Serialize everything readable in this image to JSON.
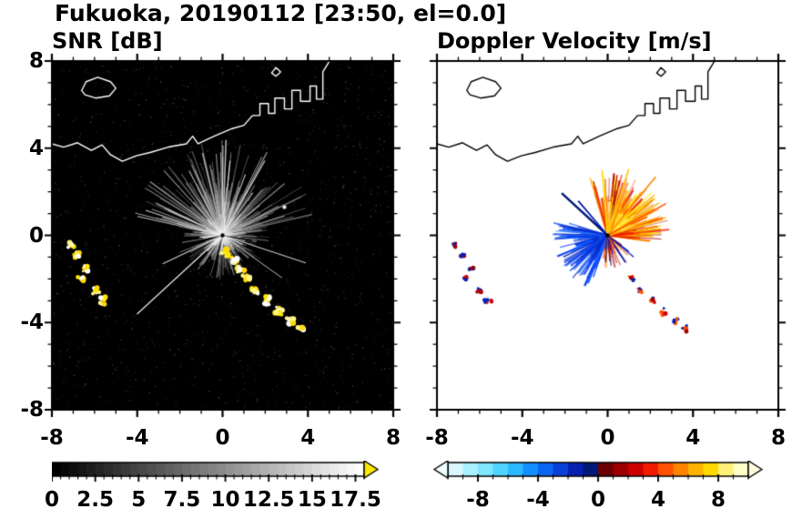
{
  "title": "Fukuoka, 20190112 [23:50, el=0.0]",
  "chart_data": {
    "type": "radar_ppi_pair",
    "suptitle": "Fukuoka, 20190112 [23:50, el=0.0]",
    "xlim": [
      -8,
      8
    ],
    "ylim": [
      -8,
      8
    ],
    "xticks": [
      -8,
      -4,
      0,
      4,
      8
    ],
    "yticks": [
      -8,
      -4,
      0,
      4,
      8
    ],
    "minor_tick_step": 1,
    "axis": {
      "xtick_labels": [
        "-8",
        "-4",
        "0",
        "4",
        "8"
      ],
      "ytick_labels": [
        "-8",
        "-4",
        "0",
        "4",
        "8"
      ]
    },
    "coastline": {
      "lines": [
        {
          "closed": false,
          "pts": [
            [
              -8.0,
              4.2
            ],
            [
              -7.45,
              4.05
            ],
            [
              -6.8,
              4.25
            ],
            [
              -6.15,
              3.9
            ],
            [
              -5.65,
              4.15
            ],
            [
              -5.25,
              3.7
            ],
            [
              -4.7,
              3.4
            ],
            [
              -4.05,
              3.65
            ],
            [
              -3.4,
              3.8
            ],
            [
              -2.55,
              4.05
            ],
            [
              -1.7,
              4.2
            ],
            [
              -1.4,
              4.55
            ],
            [
              -1.15,
              4.2
            ],
            [
              -0.4,
              4.55
            ],
            [
              0.45,
              4.9
            ],
            [
              1.0,
              5.05
            ],
            [
              1.4,
              5.5
            ],
            [
              1.75,
              5.5
            ],
            [
              1.75,
              6.05
            ],
            [
              2.15,
              6.05
            ],
            [
              2.15,
              5.6
            ],
            [
              2.45,
              5.6
            ],
            [
              2.45,
              6.3
            ],
            [
              2.9,
              6.3
            ],
            [
              2.9,
              5.8
            ],
            [
              3.25,
              5.8
            ],
            [
              3.25,
              6.65
            ],
            [
              3.65,
              6.65
            ],
            [
              3.65,
              6.15
            ],
            [
              4.1,
              6.15
            ],
            [
              4.1,
              6.85
            ],
            [
              4.4,
              6.85
            ],
            [
              4.4,
              6.25
            ],
            [
              4.7,
              6.25
            ],
            [
              4.7,
              7.5
            ],
            [
              4.95,
              7.9
            ],
            [
              5.0,
              8.0
            ]
          ]
        },
        {
          "closed": true,
          "pts": [
            [
              -6.6,
              6.65
            ],
            [
              -6.4,
              7.05
            ],
            [
              -5.85,
              7.25
            ],
            [
              -5.25,
              7.05
            ],
            [
              -5.0,
              6.75
            ],
            [
              -5.3,
              6.4
            ],
            [
              -5.95,
              6.3
            ],
            [
              -6.45,
              6.45
            ]
          ]
        },
        {
          "closed": true,
          "pts": [
            [
              2.3,
              7.45
            ],
            [
              2.5,
              7.7
            ],
            [
              2.72,
              7.5
            ],
            [
              2.5,
              7.3
            ]
          ]
        }
      ]
    },
    "panels": [
      {
        "title": "SNR [dB]",
        "background": "#000000",
        "coast_color": "#ffffff",
        "seed": 12345,
        "noise": {
          "count": 1500,
          "colors": [
            "#1d1d1d",
            "#2a2a2a",
            "#3a3a3a",
            "#4d4d4d",
            "#666666"
          ]
        },
        "glow": {
          "r": 0.55,
          "color": "rgba(255,255,255,0.85)"
        },
        "fans": [
          {
            "a0": 0,
            "a1": 360,
            "count": 260,
            "rmin": 0.3,
            "rmax": 2.2,
            "colors": [
              "#4a4a4a",
              "#636363",
              "#7d7d7d",
              "#969696"
            ],
            "width": 1.1
          },
          {
            "a0": 12,
            "a1": 168,
            "count": 170,
            "rmin": 0.8,
            "rmax": 4.4,
            "colors": [
              "#6e6e6e",
              "#8c8c8c",
              "#ababab",
              "#cfcfcf"
            ],
            "width": 1.1
          },
          {
            "a0": 0,
            "a1": 360,
            "count": 220,
            "rmin": 0.1,
            "rmax": 1.1,
            "colors": [
              "#b5b5b5",
              "#d2d2d2",
              "#ececec"
            ],
            "width": 1.2
          }
        ],
        "rays": [
          {
            "a": 222,
            "r": 5.4,
            "color": "#e6e6e6",
            "width": 1.3
          },
          {
            "a": 205,
            "r": 3.1,
            "color": "#cfcfcf",
            "width": 1.1
          },
          {
            "a": -18,
            "r": 4.1,
            "color": "#c8c8c8",
            "width": 1.1
          },
          {
            "a": -35,
            "r": 3.4,
            "color": "#bdbdbd",
            "width": 1.0
          },
          {
            "a": 195,
            "r": 1.8,
            "color": "#000000",
            "width": 2.0
          },
          {
            "a": 350,
            "r": 1.4,
            "color": "#000000",
            "width": 1.6
          },
          {
            "a": 255,
            "r": 1.5,
            "color": "#000000",
            "width": 1.6
          }
        ],
        "blob_groups": [
          {
            "colors": [
              "#ffe800",
              "#ffd900",
              "#fff48c",
              "#ffffff"
            ],
            "spread": 0.22,
            "dots": 11,
            "rad": [
              1.4,
              3.4
            ],
            "points": [
              [
                0.15,
                -0.8
              ],
              [
                0.5,
                -1.15
              ],
              [
                0.8,
                -1.55
              ],
              [
                1.1,
                -1.95
              ],
              [
                1.55,
                -2.5
              ],
              [
                2.05,
                -3.0
              ],
              [
                2.6,
                -3.5
              ],
              [
                3.15,
                -3.9
              ],
              [
                3.65,
                -4.25
              ]
            ]
          },
          {
            "colors": [
              "#ffe800",
              "#ffd900",
              "#fff48c",
              "#ffffff"
            ],
            "spread": 0.2,
            "dots": 9,
            "rad": [
              1.3,
              3.0
            ],
            "points": [
              [
                -7.1,
                -0.4
              ],
              [
                -6.8,
                -0.9
              ],
              [
                -6.4,
                -1.5
              ],
              [
                -6.6,
                -1.95
              ],
              [
                -5.95,
                -2.55
              ],
              [
                -5.6,
                -3.0
              ]
            ]
          }
        ],
        "spots": [
          {
            "x": 2.9,
            "y": 1.3,
            "r": 2.2,
            "color": "#e8e8e8"
          }
        ],
        "center_dot": "#000000",
        "colorbar": {
          "range": [
            0,
            18
          ],
          "minor_step": 0.5,
          "label_values": [
            0,
            2.5,
            5,
            7.5,
            10,
            12.5,
            15,
            17.5
          ],
          "label_texts": [
            "0",
            "2.5",
            "5",
            "7.5",
            "10",
            "12.5",
            "15",
            "17.5"
          ],
          "segments": "grayscale",
          "n_segments": 36,
          "left_arrow": null,
          "right_arrow": "#ffe800"
        }
      },
      {
        "title": "Doppler Velocity [m/s]",
        "background": "#ffffff",
        "coast_color": "#000000",
        "seed": 777,
        "noise": null,
        "glow": null,
        "fans": [
          {
            "a0": -8,
            "a1": 108,
            "count": 230,
            "rmin": 0.4,
            "rmax": 2.9,
            "colors": [
              "#f21b00",
              "#ff5200",
              "#ff8400",
              "#ffb300",
              "#ffd900",
              "#b30000"
            ],
            "width": 1.6
          },
          {
            "a0": 15,
            "a1": 95,
            "count": 110,
            "rmin": 0.3,
            "rmax": 1.6,
            "colors": [
              "#ff8400",
              "#ffb300",
              "#ffd900",
              "#fff177"
            ],
            "width": 1.7
          },
          {
            "a0": 162,
            "a1": 252,
            "count": 150,
            "rmin": 0.35,
            "rmax": 2.6,
            "colors": [
              "#0a3cf0",
              "#0628c4",
              "#0a56ff",
              "#2b74ff"
            ],
            "width": 1.7
          },
          {
            "a0": 258,
            "a1": 332,
            "count": 45,
            "rmin": 0.3,
            "rmax": 1.7,
            "colors": [
              "#ff5200",
              "#cd0000",
              "#0620b0",
              "#ff8400"
            ],
            "width": 1.4
          }
        ],
        "rays": [
          {
            "a": 138,
            "r": 2.9,
            "color": "#001878",
            "width": 2.4
          },
          {
            "a": 131,
            "r": 2.1,
            "color": "#0620b0",
            "width": 1.8
          },
          {
            "a": 50,
            "r": 3.5,
            "color": "#ff8400",
            "width": 1.6
          },
          {
            "a": 72,
            "r": 3.2,
            "color": "#ffc400",
            "width": 1.6
          },
          {
            "a": 28,
            "r": 3.1,
            "color": "#ff5200",
            "width": 1.5
          },
          {
            "a": 95,
            "r": 3.0,
            "color": "#ffd900",
            "width": 1.5
          }
        ],
        "blob_groups": [
          {
            "colors": [
              "#cd0000",
              "#a40000",
              "#0620b0",
              "#ff5200"
            ],
            "spread": 0.18,
            "dots": 7,
            "rad": [
              1.2,
              2.6
            ],
            "points": [
              [
                1.1,
                -1.95
              ],
              [
                1.55,
                -2.5
              ],
              [
                2.05,
                -3.0
              ],
              [
                2.6,
                -3.5
              ],
              [
                3.15,
                -3.9
              ],
              [
                3.65,
                -4.25
              ]
            ]
          },
          {
            "colors": [
              "#cd0000",
              "#a40000",
              "#0620b0"
            ],
            "spread": 0.18,
            "dots": 7,
            "rad": [
              1.2,
              2.6
            ],
            "points": [
              [
                -7.1,
                -0.4
              ],
              [
                -6.8,
                -0.9
              ],
              [
                -6.4,
                -1.5
              ],
              [
                -6.6,
                -1.95
              ],
              [
                -5.95,
                -2.55
              ],
              [
                -5.6,
                -3.0
              ]
            ]
          }
        ],
        "spots": [],
        "center_dot": "#000000",
        "colorbar": {
          "range": [
            -10,
            10
          ],
          "minor_step": 1,
          "label_values": [
            -8,
            -4,
            0,
            4,
            8
          ],
          "label_texts": [
            "-8",
            "-4",
            "0",
            "4",
            "8"
          ],
          "segments": [
            "#d9f7ff",
            "#aaf0ff",
            "#7fe6ff",
            "#4fd4ff",
            "#2bb8ff",
            "#1190ff",
            "#0a66f0",
            "#0840d8",
            "#0620b0",
            "#001878",
            "#6b0000",
            "#9c0000",
            "#cd0000",
            "#f21b00",
            "#ff5200",
            "#ff8400",
            "#ffb300",
            "#ffd900",
            "#fff177",
            "#ffffc8"
          ],
          "left_arrow": "#f0ffff",
          "right_arrow": "#ffffe0"
        }
      }
    ]
  }
}
